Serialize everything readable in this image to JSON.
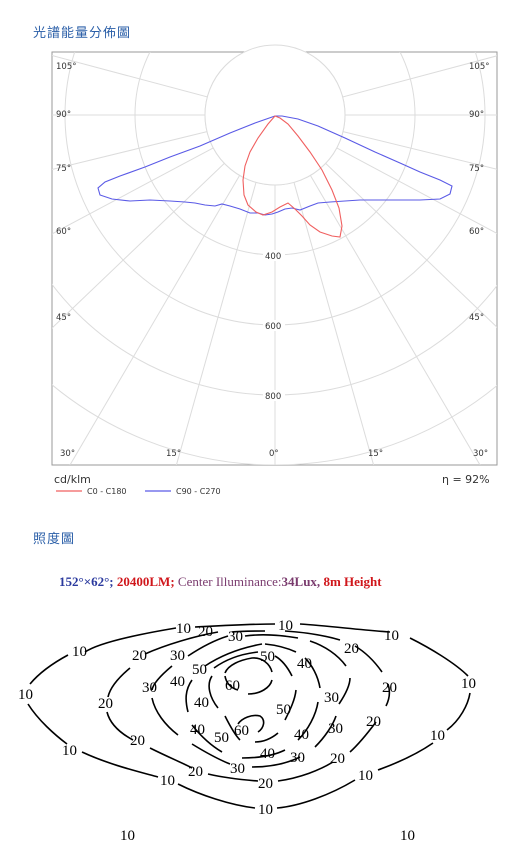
{
  "headings": {
    "polar": "光譜能量分佈圖",
    "isolux": "照度圖"
  },
  "polar": {
    "angle_labels_left": [
      "105°",
      "90°",
      "75°",
      "60°",
      "45°"
    ],
    "angle_labels_right": [
      "105°",
      "90°",
      "75°",
      "60°",
      "45°"
    ],
    "bottom_labels": [
      "30°",
      "15°",
      "0°",
      "15°",
      "30°"
    ],
    "radial_labels": [
      "400",
      "600",
      "800"
    ],
    "unit": "cd/klm",
    "efficiency": "η = 92%",
    "legend": [
      {
        "label": "C0 - C180",
        "color": "#f06060"
      },
      {
        "label": "C90 - C270",
        "color": "#5a5ae6"
      }
    ],
    "grid_color": "#d8d8d8"
  },
  "isolux": {
    "caption_parts": [
      "152°×62°; ",
      "20400LM; ",
      "Center Illuminance:",
      "34Lux, ",
      "8m Height"
    ],
    "contour_labels": [
      "10",
      "10",
      "10",
      "10",
      "10",
      "10",
      "10",
      "10",
      "10",
      "10",
      "10",
      "10",
      "10",
      "20",
      "20",
      "20",
      "20",
      "20",
      "20",
      "20",
      "20",
      "20",
      "20",
      "30",
      "30",
      "30",
      "30",
      "30",
      "30",
      "30",
      "40",
      "40",
      "40",
      "40",
      "40",
      "40",
      "50",
      "50",
      "50",
      "50",
      "60",
      "60"
    ]
  }
}
